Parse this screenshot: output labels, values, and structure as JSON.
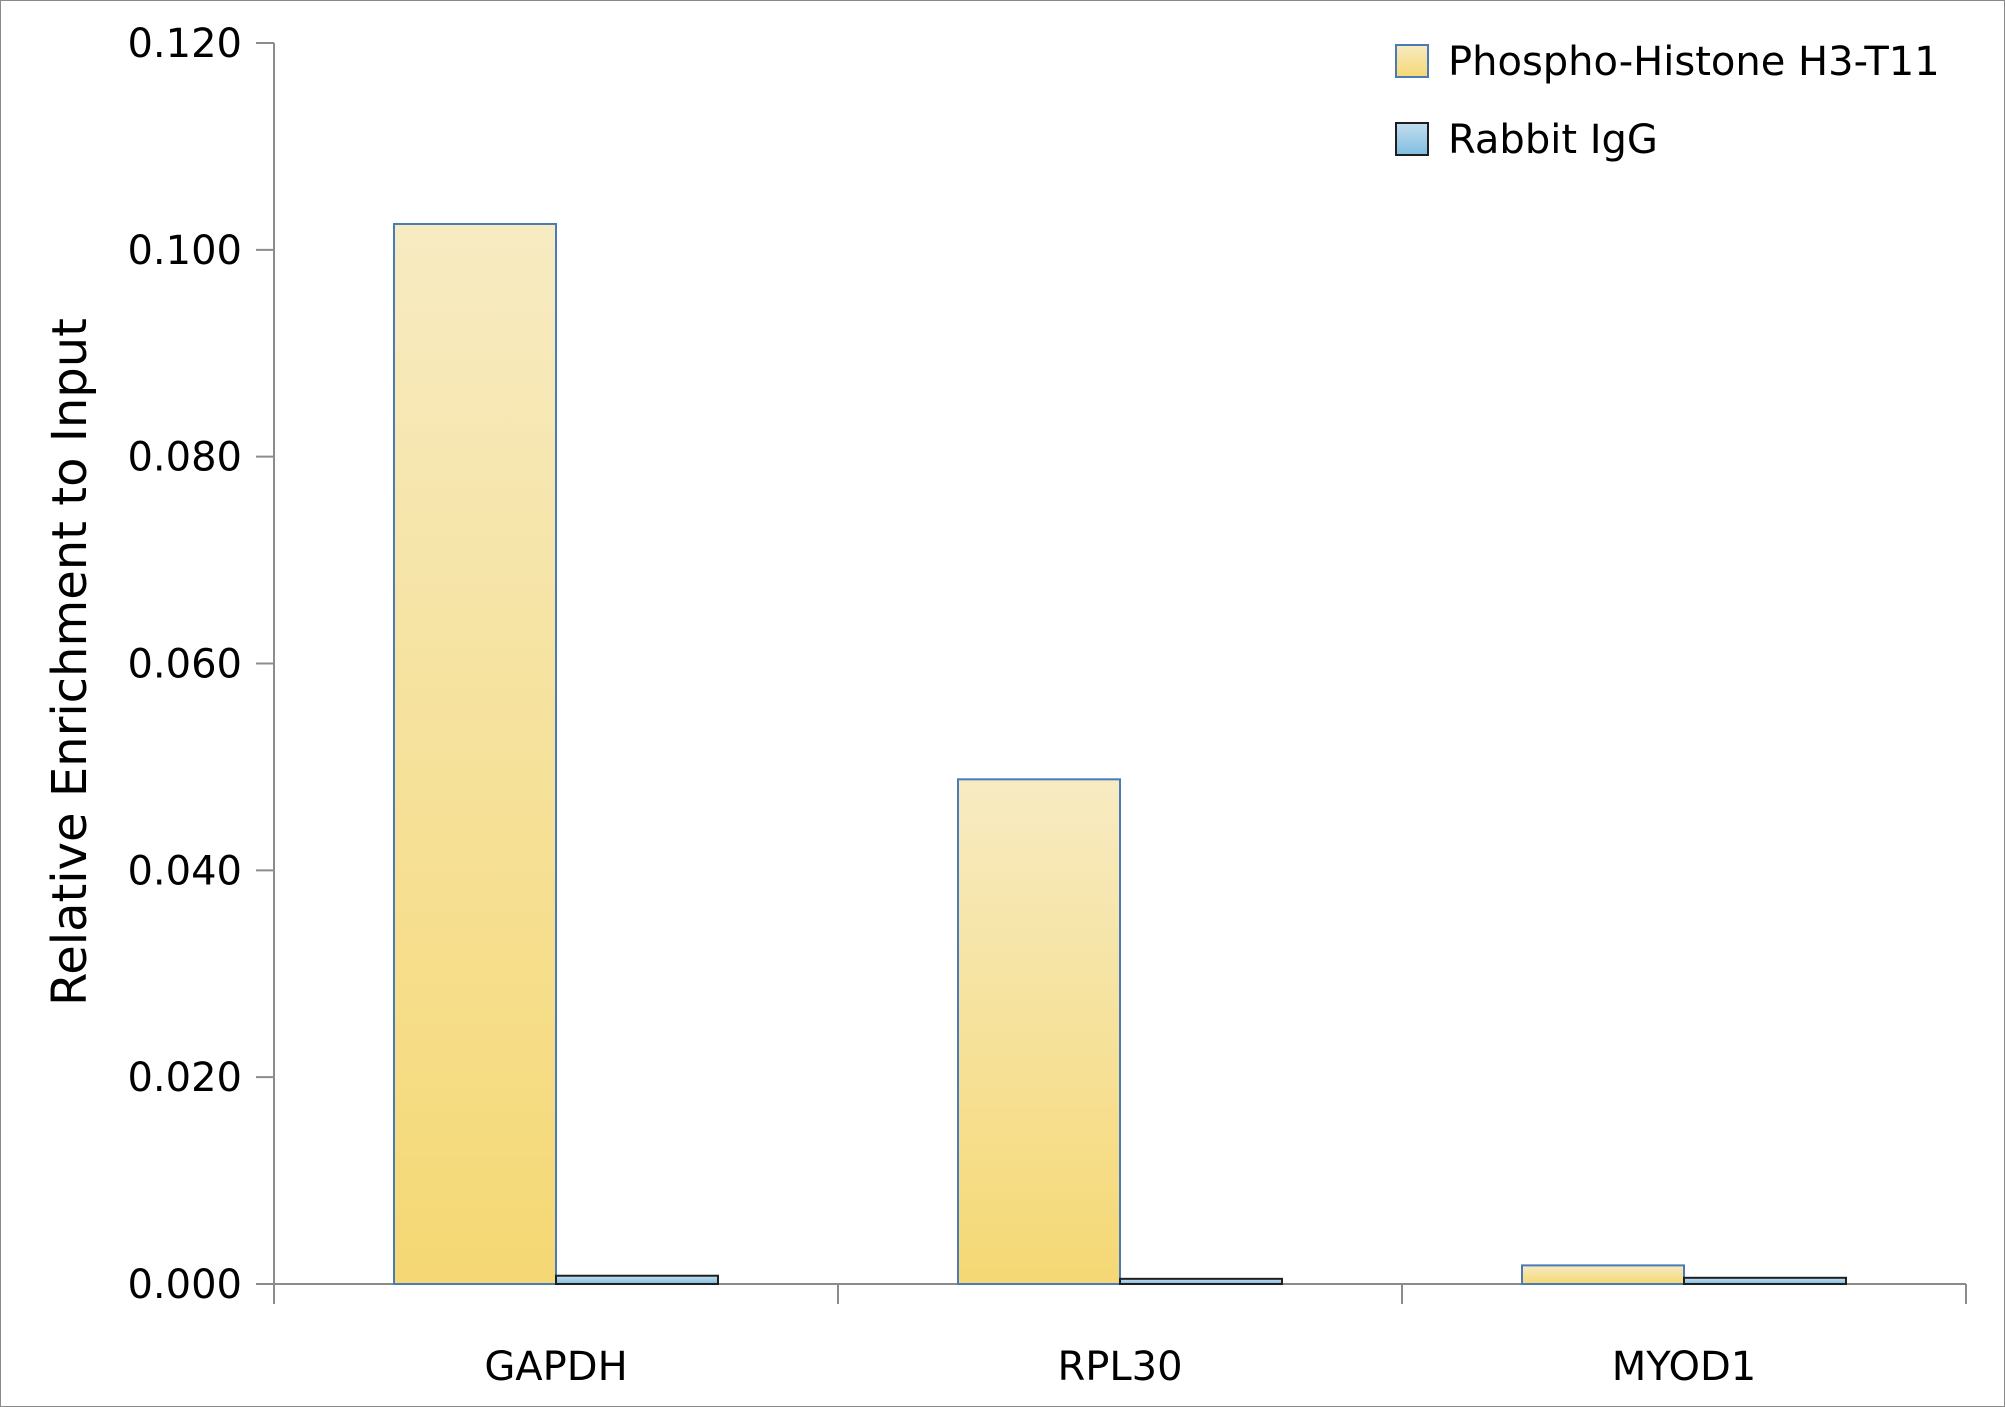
{
  "chart_data": {
    "type": "bar",
    "title": "",
    "xlabel": "",
    "ylabel": "Relative Enrichment to Input",
    "ylim": [
      0,
      0.12
    ],
    "yticks": [
      "0.000",
      "0.020",
      "0.040",
      "0.060",
      "0.080",
      "0.100",
      "0.120"
    ],
    "categories": [
      "GAPDH",
      "RPL30",
      "MYOD1"
    ],
    "series": [
      {
        "name": "Phospho-Histone H3-T11",
        "values": [
          0.1025,
          0.0488,
          0.0018
        ],
        "color_top": "#f7ebc2",
        "color_bottom": "#f5d874",
        "stroke": "#4a7ab8"
      },
      {
        "name": "Rabbit IgG",
        "values": [
          0.0008,
          0.0005,
          0.0006
        ],
        "color_top": "#c3def0",
        "color_bottom": "#7fbde0",
        "stroke": "#1f1f1f"
      }
    ],
    "grid": false,
    "legend_position": "top-right"
  }
}
